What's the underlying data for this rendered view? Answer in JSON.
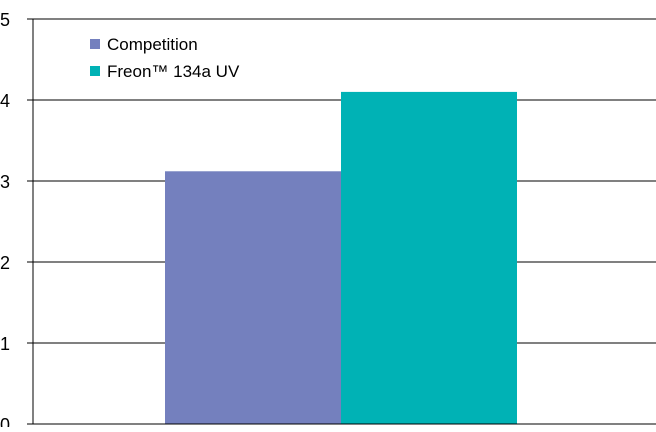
{
  "chart_data": {
    "type": "bar",
    "title": "",
    "xlabel": "",
    "ylabel": "",
    "ylim": [
      0,
      5
    ],
    "yticks": [
      "0",
      "1",
      "2",
      "3",
      "4",
      "5"
    ],
    "grid": true,
    "legend_position": "top-left",
    "categories": [
      ""
    ],
    "series": [
      {
        "name": "Competition",
        "values": [
          3.12
        ],
        "color": "#7480be"
      },
      {
        "name": "Freon™ 134a UV",
        "values": [
          4.1
        ],
        "color": "#00b2b5"
      }
    ]
  }
}
